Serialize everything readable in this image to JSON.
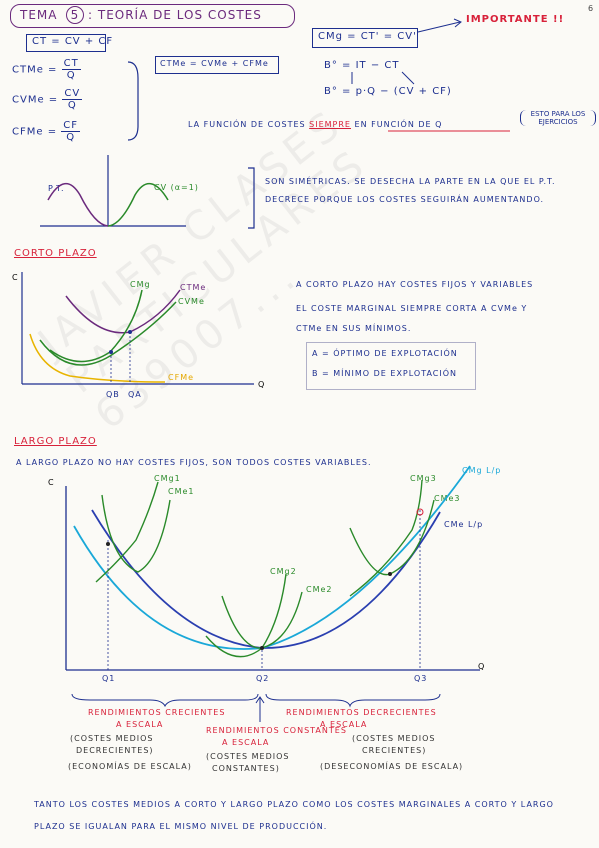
{
  "header": {
    "tema_label": "TEMA",
    "tema_number": "5",
    "tema_title": ": TEORÍA DE LOS COSTES",
    "page_number": "6"
  },
  "formulas": {
    "ct": "CT = CV + CF",
    "ctme_left": "CTMe =",
    "ctme_num": "CT",
    "ctme_den": "Q",
    "cvme_left": "CVMe =",
    "cvme_num": "CV",
    "cvme_den": "Q",
    "cfme_left": "CFMe =",
    "cfme_num": "CF",
    "cfme_den": "Q",
    "ctme_sum": "CTMe = CVMe + CFMe",
    "cmg": "CMg = CT' = CV'",
    "importante": "IMPORTANTE !!",
    "b1": "B° = IT − CT",
    "b2": "B° = p·Q − (CV + CF)",
    "funcion_pre": "LA FUNCIÓN DE COSTES",
    "funcion_siempre": "SIEMPRE",
    "funcion_post": "EN FUNCIÓN DE Q",
    "esto_para": "ESTO PARA LOS EJERCICIOS"
  },
  "sym": {
    "pt": "P.T.",
    "cv_label": "CV (α=1)",
    "text_line1": "SON SIMÉTRICAS. SE DESECHA LA PARTE EN LA QUE EL P.T.",
    "text_line2": "DECRECE PORQUE LOS COSTES SEGUIRÁN AUMENTANDO."
  },
  "corto": {
    "heading": "CORTO PLAZO",
    "axis_c": "C",
    "axis_q": "Q",
    "cmg": "CMg",
    "ctme": "CTMe",
    "cvme": "CVMe",
    "cfme": "CFMe",
    "qb": "QB",
    "qa": "QA",
    "text_line1": "A CORTO PLAZO HAY COSTES FIJOS Y VARIABLES",
    "text_line2": "EL COSTE MARGINAL SIEMPRE CORTA A CVMe Y",
    "text_line3": "CTMe EN SUS MÍNIMOS.",
    "a_label": "A = ÓPTIMO DE EXPLOTACIÓN",
    "b_label": "B = MÍNIMO DE EXPLOTACIÓN"
  },
  "largo": {
    "heading": "LARGO PLAZO",
    "subtitle": "A LARGO PLAZO NO HAY COSTES FIJOS, SON TODOS COSTES VARIABLES.",
    "axis_c": "C",
    "axis_q": "Q",
    "cmg1": "CMg1",
    "cme1": "CMe1",
    "cmg2": "CMg2",
    "cme2": "CMe2",
    "cmg3": "CMg3",
    "cme3": "CMe3",
    "cmg_lp": "CMg L/p",
    "cme_lp": "CMe L/p",
    "q1": "Q1",
    "q2": "Q2",
    "q3": "Q3",
    "rend_crec_1": "RENDIMIENTOS CRECIENTES",
    "rend_crec_2": "A ESCALA",
    "costes_medios_dec_1": "(COSTES MEDIOS",
    "costes_medios_dec_2": "DECRECIENTES)",
    "economias": "(ECONOMÍAS DE ESCALA)",
    "rend_const_1": "RENDIMIENTOS CONSTANTES",
    "rend_const_2": "A ESCALA",
    "costes_medios_const_1": "(COSTES MEDIOS",
    "costes_medios_const_2": "CONSTANTES)",
    "rend_dec_1": "RENDIMIENTOS DECRECIENTES",
    "rend_dec_2": "A ESCALA",
    "costes_medios_crec_1": "(COSTES MEDIOS",
    "costes_medios_crec_2": "CRECIENTES)",
    "deseconomias": "(DESECONOMÍAS DE ESCALA)",
    "footer_line1": "TANTO LOS COSTES MEDIOS A CORTO Y LARGO PLAZO COMO LOS COSTES MARGINALES A CORTO Y LARGO",
    "footer_line2": "PLAZO SE IGUALAN PARA EL MISMO NIVEL DE PRODUCCIÓN."
  },
  "watermark": "JAVIER CLASES PARTICULARES 639007..."
}
